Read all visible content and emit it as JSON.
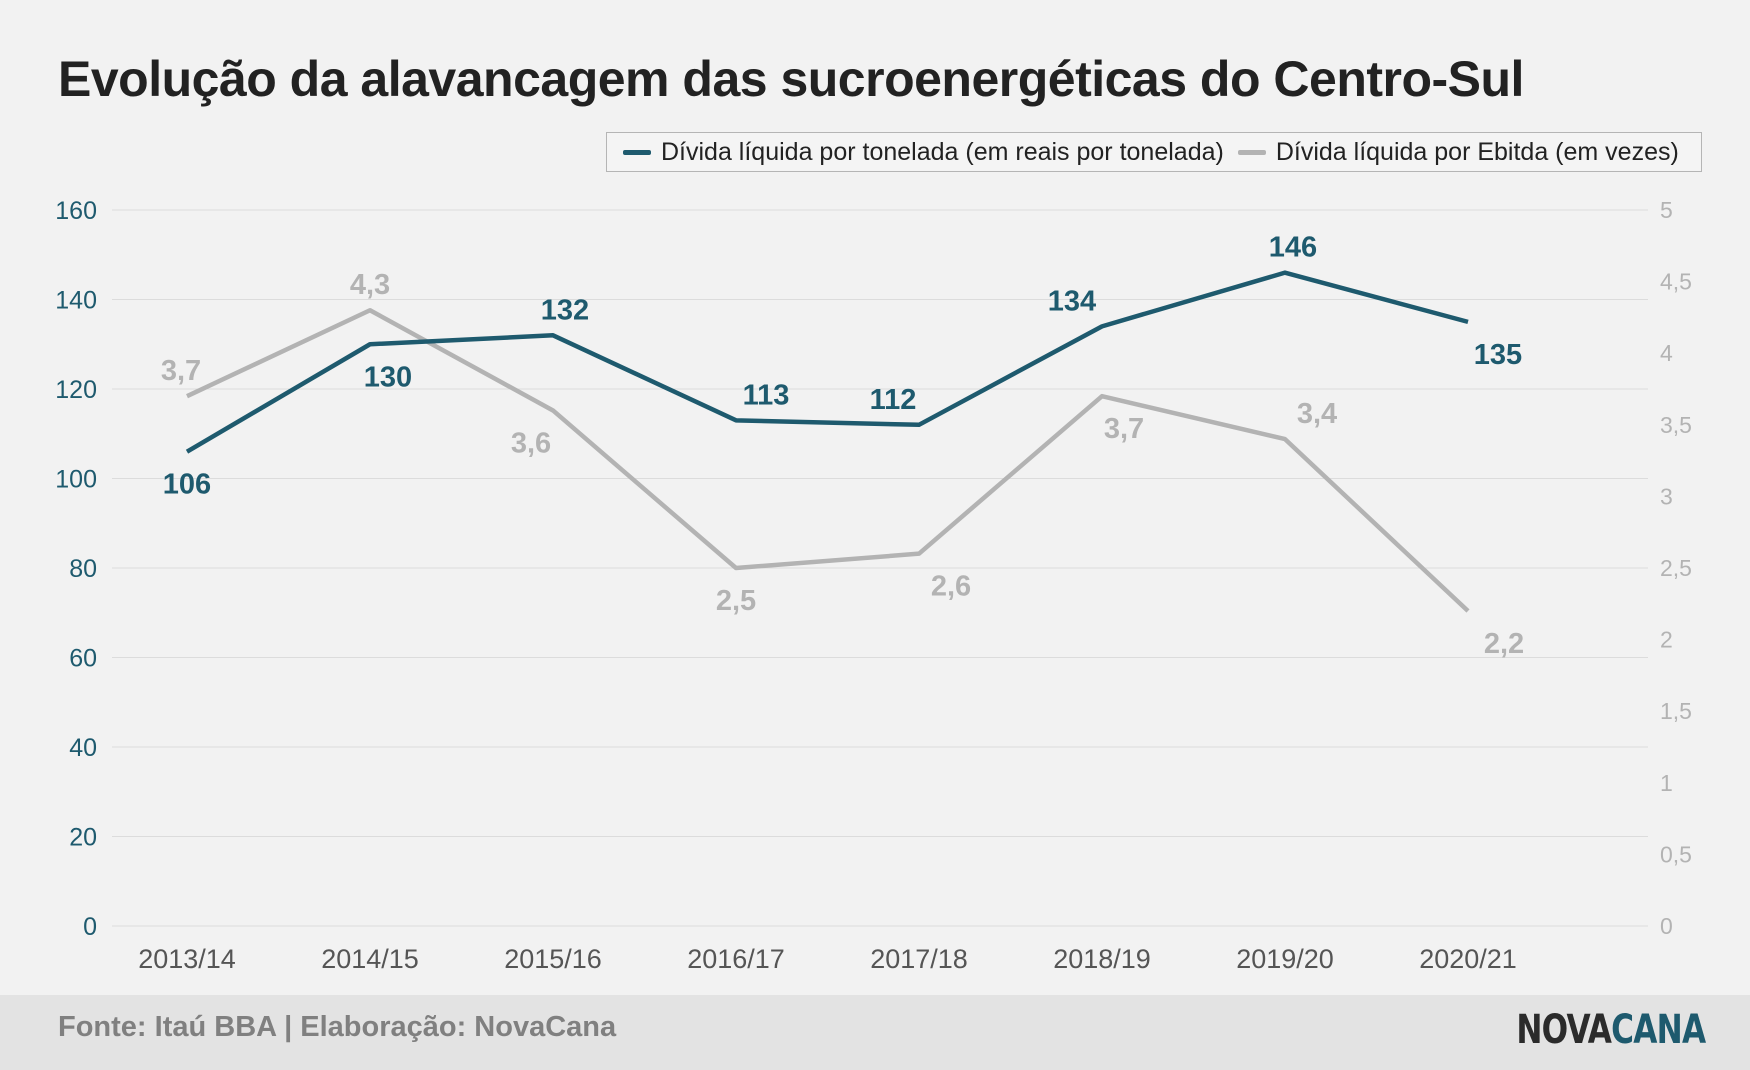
{
  "title": "Evolução da alavancagem das sucroenergéticas do Centro-Sul",
  "source": "Fonte: Itaú BBA | Elaboração: NovaCana",
  "logo": {
    "part1": "NOVA",
    "part2": "CANA"
  },
  "colors": {
    "primary": "#1e5a6e",
    "secondary": "#b3b3b3",
    "grid": "#dcdcdc",
    "text": "#222222"
  },
  "chart_data": {
    "type": "line",
    "categories": [
      "2013/14",
      "2014/15",
      "2015/16",
      "2016/17",
      "2017/18",
      "2018/19",
      "2019/20",
      "2020/21"
    ],
    "series": [
      {
        "name": "Dívida líquida por tonelada (em reais por tonelada)",
        "axis": "left",
        "values": [
          106,
          130,
          132,
          113,
          112,
          134,
          146,
          135
        ],
        "labels": [
          "106",
          "130",
          "132",
          "113",
          "112",
          "134",
          "146",
          "135"
        ],
        "color": "#1e5a6e"
      },
      {
        "name": "Dívida líquida por Ebitda (em vezes)",
        "axis": "right",
        "values": [
          3.7,
          4.3,
          3.6,
          2.5,
          2.6,
          3.7,
          3.4,
          2.2
        ],
        "labels": [
          "3,7",
          "4,3",
          "3,6",
          "2,5",
          "2,6",
          "3,7",
          "3,4",
          "2,2"
        ],
        "color": "#b3b3b3"
      }
    ],
    "y_left": {
      "min": 0,
      "max": 160,
      "ticks": [
        "0",
        "20",
        "40",
        "60",
        "80",
        "100",
        "120",
        "140",
        "160"
      ]
    },
    "y_right": {
      "min": 0,
      "max": 5,
      "ticks": [
        "0",
        "0,5",
        "1",
        "1,5",
        "2",
        "2,5",
        "3",
        "3,5",
        "4",
        "4,5",
        "5"
      ]
    },
    "grid": true,
    "legend": "top-right"
  }
}
